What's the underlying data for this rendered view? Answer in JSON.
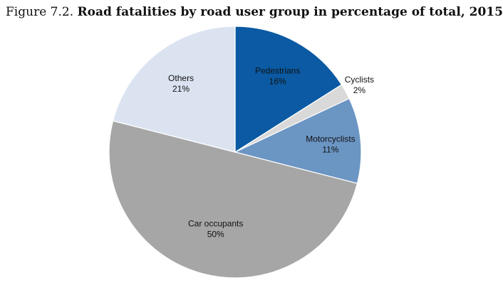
{
  "caption": {
    "label": "Figure 7.2.",
    "title": "Road fatalities by road user group in percentage of total, 2015"
  },
  "chart_data": {
    "type": "pie",
    "start_angle_deg": 0,
    "direction": "clockwise",
    "slices": [
      {
        "label": "Pedestrians",
        "value": 16,
        "value_label": "16%",
        "color": "#0b5aa3",
        "label_placement": "inside"
      },
      {
        "label": "Cyclists",
        "value": 2,
        "value_label": "2%",
        "color": "#d9d9d9",
        "label_placement": "outside"
      },
      {
        "label": "Motorcyclists",
        "value": 11,
        "value_label": "11%",
        "color": "#6b95c3",
        "label_placement": "inside"
      },
      {
        "label": "Car occupants",
        "value": 50,
        "value_label": "50%",
        "color": "#a6a6a6",
        "label_placement": "inside"
      },
      {
        "label": "Others",
        "value": 21,
        "value_label": "21%",
        "color": "#dbe3f1",
        "label_placement": "inside"
      }
    ]
  }
}
